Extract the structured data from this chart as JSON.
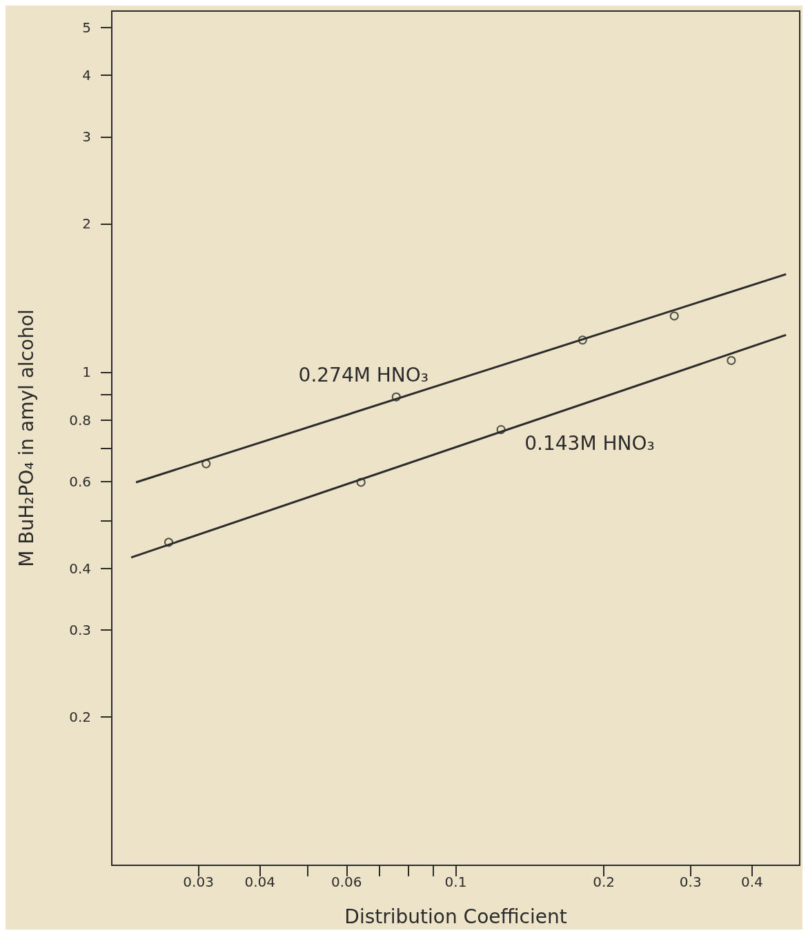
{
  "chart_data": {
    "type": "scatter",
    "xlabel": "Distribution Coefficient",
    "ylabel": "M BuH₂PO₄ in amyl alcohol",
    "log": "xy",
    "grid": false,
    "xlim": [
      0.02,
      0.5
    ],
    "ylim": [
      0.1,
      5.4
    ],
    "xticks": [
      0.03,
      0.04,
      {
        "value": 0.05,
        "label": null
      },
      0.06,
      {
        "value": 0.07,
        "label": null
      },
      {
        "value": 0.08,
        "label": null
      },
      {
        "value": 0.09,
        "label": null
      },
      0.1,
      0.2,
      0.3,
      0.4
    ],
    "yticks": [
      0.2,
      0.3,
      0.4,
      {
        "value": 0.5,
        "label": null
      },
      0.6,
      {
        "value": 0.7,
        "label": null
      },
      0.8,
      {
        "value": 0.9,
        "label": null
      },
      1,
      2,
      3,
      4,
      5
    ],
    "series": [
      {
        "marker": "circle",
        "color": "#2b2b2b",
        "x": [
          0.0311,
          0.0757,
          0.181,
          0.278
        ],
        "values": [
          0.652,
          0.891,
          1.162,
          1.3
        ]
      },
      {
        "marker": "circle",
        "color": "#2b2b2b",
        "x": [
          0.0261,
          0.0642,
          0.1236,
          0.363
        ],
        "values": [
          0.452,
          0.598,
          0.765,
          1.056
        ]
      },
      {
        "name": "0.274M HNO₃",
        "type": "line",
        "marker": "none",
        "color": "#2b2b2b",
        "x": [
          0.0224,
          0.469
        ],
        "values": [
          0.598,
          1.58
        ]
      },
      {
        "name": "0.143M HNO₃",
        "type": "line",
        "marker": "none",
        "color": "#2b2b2b",
        "x": [
          0.0219,
          0.469
        ],
        "values": [
          0.421,
          1.19
        ]
      }
    ]
  }
}
